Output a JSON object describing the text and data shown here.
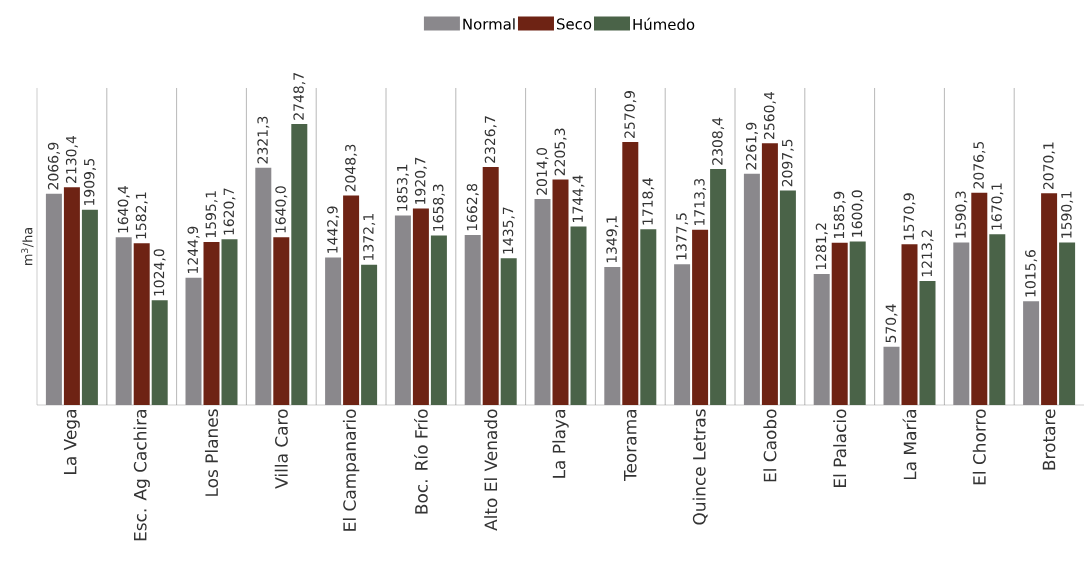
{
  "chart_data": {
    "type": "bar",
    "ylabel": "m$^{3}$/ha",
    "categories": [
      "La Vega",
      "Esc. Ag Cachira",
      "Los Planes",
      "Villa Caro",
      "El Campanario",
      "Boc. Río Frío",
      "Alto El Venado",
      "La Playa",
      "Teorama",
      "Quince Letras",
      "El Caobo",
      "El Palacio",
      "La María",
      "El Chorro",
      "Brotare"
    ],
    "series": [
      {
        "name": "Normal",
        "color": "#8a888c",
        "values": [
          2066.9,
          1640.4,
          1244.9,
          2321.3,
          1442.9,
          1853.1,
          1662.8,
          2014.0,
          1349.1,
          1377.5,
          2261.9,
          1281.2,
          570.4,
          1590.3,
          1015.6
        ],
        "value_labels": [
          "2066,9",
          "1640,4",
          "1244,9",
          "2321,3",
          "1442,9",
          "1853,1",
          "1662,8",
          "2014,0",
          "1349,1",
          "1377,5",
          "2261,9",
          "1281,2",
          "570,4",
          "1590,3",
          "1015,6"
        ]
      },
      {
        "name": "Seco",
        "color": "#6e2314",
        "values": [
          2130.4,
          1582.1,
          1595.1,
          1640.0,
          2048.3,
          1920.7,
          2326.7,
          2205.3,
          2570.9,
          1713.3,
          2560.4,
          1585.9,
          1570.9,
          2076.5,
          2070.1
        ],
        "value_labels": [
          "2130,4",
          "1582,1",
          "1595,1",
          "1640,0",
          "2048,3",
          "1920,7",
          "2326,7",
          "2205,3",
          "2570,9",
          "1713,3",
          "2560,4",
          "1585,9",
          "1570,9",
          "2076,5",
          "2070,1"
        ]
      },
      {
        "name": "Húmedo",
        "color": "#4a6348",
        "values": [
          1909.5,
          1024.0,
          1620.7,
          2748.7,
          1372.1,
          1658.3,
          1435.7,
          1744.4,
          1718.4,
          2308.4,
          2097.5,
          1600.0,
          1213.2,
          1670.1,
          1590.1
        ],
        "value_labels": [
          "1909,5",
          "1024,0",
          "1620,7",
          "2748,7",
          "1372,1",
          "1658,3",
          "1435,7",
          "1744,4",
          "1718,4",
          "2308,4",
          "2097,5",
          "1600,0",
          "1213,2",
          "1670,1",
          "1590,1"
        ]
      }
    ],
    "ylim": [
      0,
      3100
    ],
    "grid": "x",
    "legend": "top"
  }
}
